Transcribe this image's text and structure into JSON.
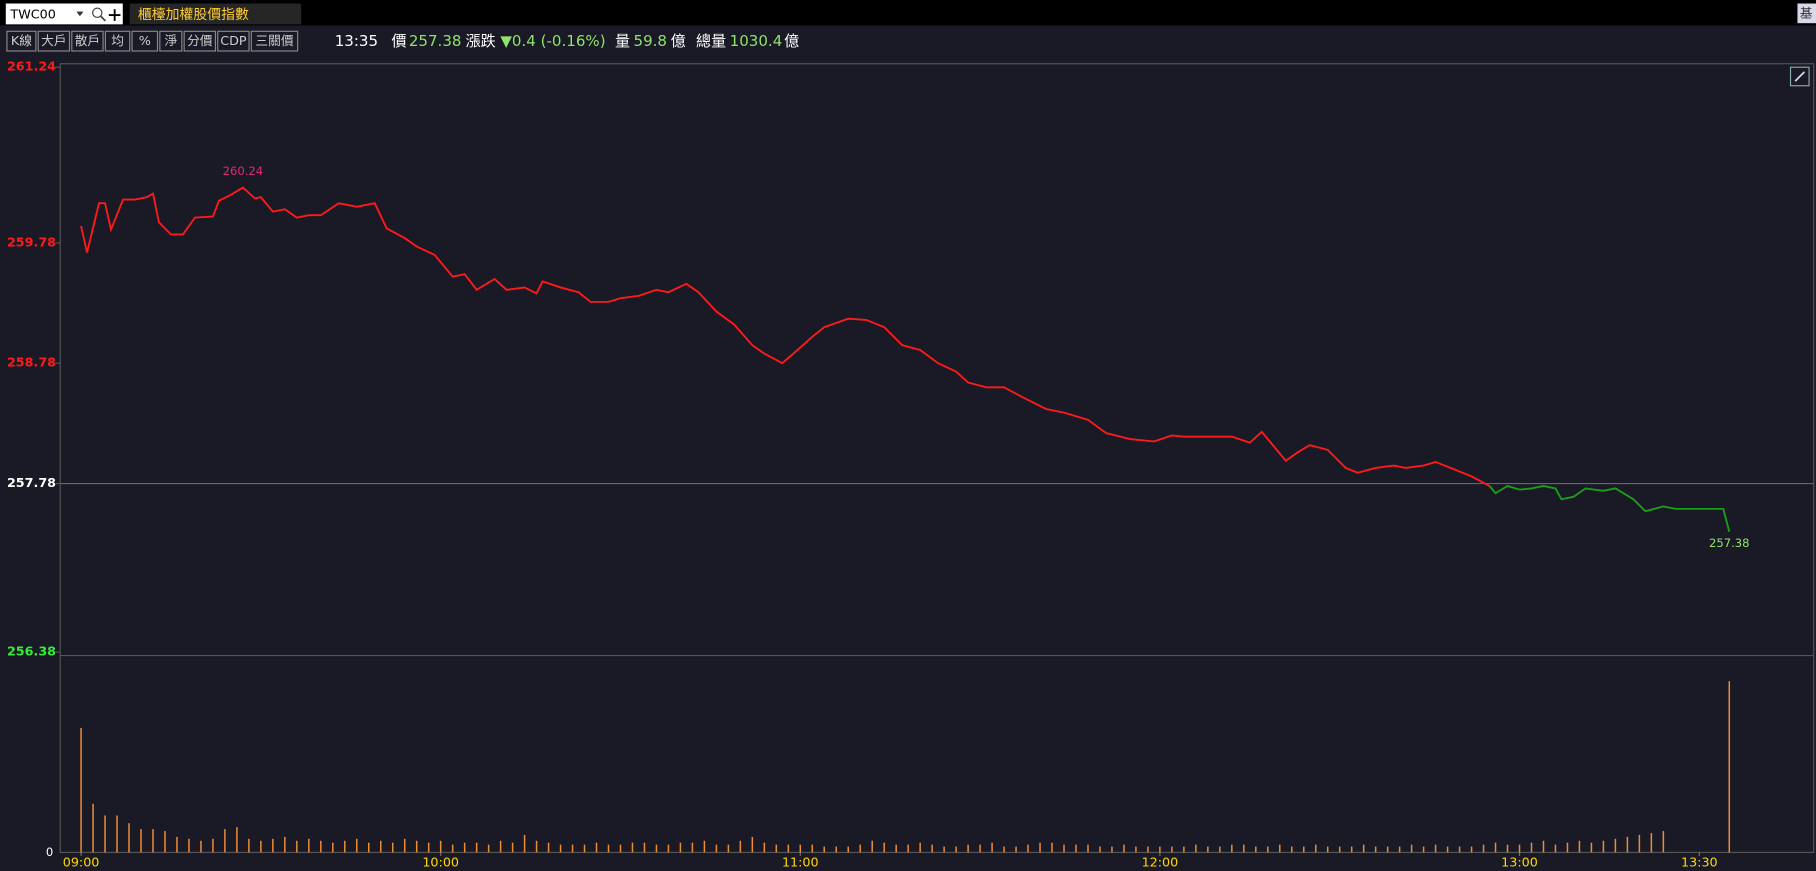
{
  "toolbar": {
    "symbol": "TWC00",
    "name": "櫃檯加權股價指數",
    "corner": "基",
    "buttons": [
      "K線",
      "大戶",
      "散戶",
      "均",
      "%",
      "淨",
      "分價",
      "CDP",
      "三關價"
    ]
  },
  "quote": {
    "time": "13:35",
    "price_label": "價",
    "price": "257.38",
    "change_label": "漲跌",
    "change": "▼0.4 (-0.16%)",
    "volume_label": "量",
    "volume": "59.8",
    "volume_unit": "億",
    "total_label": "總量",
    "total": "1030.4",
    "total_unit": "億"
  },
  "chart_data": [
    {
      "type": "line",
      "reference": 257.78,
      "up_color": "#ff1a1a",
      "down_color": "#1a9e1a",
      "x": [
        "09:00",
        "09:01",
        "09:03",
        "09:04",
        "09:05",
        "09:07",
        "09:09",
        "09:11",
        "09:12",
        "09:13",
        "09:15",
        "09:17",
        "09:19",
        "09:22",
        "09:23",
        "09:25",
        "09:27",
        "09:29",
        "09:30",
        "09:32",
        "09:34",
        "09:36",
        "09:38",
        "09:40",
        "09:43",
        "09:46",
        "09:49",
        "09:51",
        "09:54",
        "09:56",
        "09:59",
        "10:02",
        "10:04",
        "10:06",
        "10:09",
        "10:11",
        "10:14",
        "10:16",
        "10:17",
        "10:20",
        "10:23",
        "10:25",
        "10:28",
        "10:30",
        "10:33",
        "10:36",
        "10:38",
        "10:41",
        "10:43",
        "10:46",
        "10:49",
        "10:52",
        "10:54",
        "10:57",
        "11:00",
        "11:02",
        "11:04",
        "11:08",
        "11:11",
        "11:14",
        "11:17",
        "11:20",
        "11:23",
        "11:26",
        "11:28",
        "11:31",
        "11:34",
        "11:37",
        "11:41",
        "11:44",
        "11:48",
        "11:51",
        "11:55",
        "11:59",
        "12:02",
        "12:04",
        "12:08",
        "12:12",
        "12:15",
        "12:17",
        "12:19",
        "12:21",
        "12:23",
        "12:25",
        "12:28",
        "12:31",
        "12:33",
        "12:36",
        "12:39",
        "12:41",
        "12:44",
        "12:46",
        "12:49",
        "12:52",
        "12:55",
        "12:56",
        "12:58",
        "13:00",
        "13:02",
        "13:04",
        "13:06",
        "13:07",
        "13:09",
        "13:11",
        "13:14",
        "13:16",
        "13:19",
        "13:21",
        "13:24",
        "13:26",
        "13:31",
        "13:34",
        "13:35"
      ],
      "values": [
        259.92,
        259.7,
        260.11,
        260.11,
        259.89,
        260.14,
        260.14,
        260.16,
        260.19,
        259.95,
        259.85,
        259.85,
        259.99,
        260.0,
        260.13,
        260.18,
        260.24,
        260.15,
        260.16,
        260.04,
        260.06,
        259.99,
        260.01,
        260.01,
        260.11,
        260.08,
        260.11,
        259.9,
        259.82,
        259.75,
        259.68,
        259.5,
        259.52,
        259.39,
        259.48,
        259.39,
        259.41,
        259.36,
        259.46,
        259.41,
        259.37,
        259.29,
        259.29,
        259.32,
        259.34,
        259.39,
        259.37,
        259.44,
        259.37,
        259.21,
        259.1,
        258.93,
        258.86,
        258.78,
        258.91,
        259.0,
        259.08,
        259.15,
        259.14,
        259.08,
        258.93,
        258.89,
        258.78,
        258.71,
        258.62,
        258.58,
        258.58,
        258.5,
        258.4,
        258.37,
        258.31,
        258.2,
        258.15,
        258.13,
        258.18,
        258.17,
        258.17,
        258.17,
        258.12,
        258.21,
        258.09,
        257.97,
        258.04,
        258.1,
        258.06,
        257.91,
        257.87,
        257.91,
        257.93,
        257.91,
        257.93,
        257.96,
        257.9,
        257.84,
        257.76,
        257.7,
        257.76,
        257.73,
        257.74,
        257.76,
        257.74,
        257.65,
        257.67,
        257.74,
        257.72,
        257.74,
        257.65,
        257.55,
        257.59,
        257.57,
        257.57,
        257.57,
        257.38
      ],
      "ylim": [
        256.38,
        261.24
      ],
      "yticks": [
        261.24,
        259.78,
        258.78,
        257.78,
        256.38
      ],
      "xlim": [
        "09:00",
        "13:45"
      ],
      "annotations": [
        {
          "x": "09:27",
          "y": 260.24,
          "text": "260.24",
          "color": "#e0287a"
        },
        {
          "x": "13:35",
          "y": 257.38,
          "text": "257.38",
          "color": "#8fe36a"
        }
      ]
    },
    {
      "type": "bar",
      "color": "#ef8a35",
      "ylim": [
        0,
        100
      ],
      "yticks": [
        0
      ],
      "xticks": [
        "09:00",
        "10:00",
        "11:00",
        "12:00",
        "13:00",
        "13:30"
      ],
      "x": [
        "09:00",
        "09:02",
        "09:04",
        "09:06",
        "09:08",
        "09:10",
        "09:12",
        "09:14",
        "09:16",
        "09:18",
        "09:20",
        "09:22",
        "09:24",
        "09:26",
        "09:28",
        "09:30",
        "09:32",
        "09:34",
        "09:36",
        "09:38",
        "09:40",
        "09:42",
        "09:44",
        "09:46",
        "09:48",
        "09:50",
        "09:52",
        "09:54",
        "09:56",
        "09:58",
        "10:00",
        "10:02",
        "10:04",
        "10:06",
        "10:08",
        "10:10",
        "10:12",
        "10:14",
        "10:16",
        "10:18",
        "10:20",
        "10:22",
        "10:24",
        "10:26",
        "10:28",
        "10:30",
        "10:32",
        "10:34",
        "10:36",
        "10:38",
        "10:40",
        "10:42",
        "10:44",
        "10:46",
        "10:48",
        "10:50",
        "10:52",
        "10:54",
        "10:56",
        "10:58",
        "11:00",
        "11:02",
        "11:04",
        "11:06",
        "11:08",
        "11:10",
        "11:12",
        "11:14",
        "11:16",
        "11:18",
        "11:20",
        "11:22",
        "11:24",
        "11:26",
        "11:28",
        "11:30",
        "11:32",
        "11:34",
        "11:36",
        "11:38",
        "11:40",
        "11:42",
        "11:44",
        "11:46",
        "11:48",
        "11:50",
        "11:52",
        "11:54",
        "11:56",
        "11:58",
        "12:00",
        "12:02",
        "12:04",
        "12:06",
        "12:08",
        "12:10",
        "12:12",
        "12:14",
        "12:16",
        "12:18",
        "12:20",
        "12:22",
        "12:24",
        "12:26",
        "12:28",
        "12:30",
        "12:32",
        "12:34",
        "12:36",
        "12:38",
        "12:40",
        "12:42",
        "12:44",
        "12:46",
        "12:48",
        "12:50",
        "12:52",
        "12:54",
        "12:56",
        "12:58",
        "13:00",
        "13:02",
        "13:04",
        "13:06",
        "13:08",
        "13:10",
        "13:12",
        "13:14",
        "13:16",
        "13:18",
        "13:20",
        "13:22",
        "13:24",
        "13:35"
      ],
      "values": [
        64,
        25,
        19,
        19,
        15,
        12,
        12,
        11,
        8,
        7,
        6,
        7,
        12,
        13,
        7,
        6,
        7,
        8,
        6,
        7,
        6,
        5,
        6,
        7,
        5,
        6,
        5,
        7,
        6,
        5,
        6,
        4,
        5,
        5,
        4,
        6,
        5,
        9,
        6,
        5,
        4,
        4,
        4,
        5,
        4,
        4,
        5,
        5,
        4,
        4,
        5,
        5,
        6,
        4,
        4,
        6,
        8,
        5,
        4,
        4,
        4,
        4,
        3,
        3,
        3,
        4,
        6,
        5,
        4,
        4,
        5,
        4,
        3,
        3,
        4,
        4,
        5,
        3,
        3,
        4,
        5,
        5,
        4,
        4,
        4,
        3,
        3,
        4,
        3,
        3,
        3,
        3,
        3,
        4,
        3,
        3,
        4,
        4,
        3,
        3,
        4,
        3,
        3,
        4,
        3,
        3,
        3,
        4,
        3,
        3,
        3,
        4,
        3,
        4,
        3,
        3,
        3,
        4,
        5,
        4,
        4,
        5,
        6,
        4,
        5,
        6,
        5,
        6,
        7,
        8,
        9,
        10,
        11,
        88
      ]
    }
  ]
}
